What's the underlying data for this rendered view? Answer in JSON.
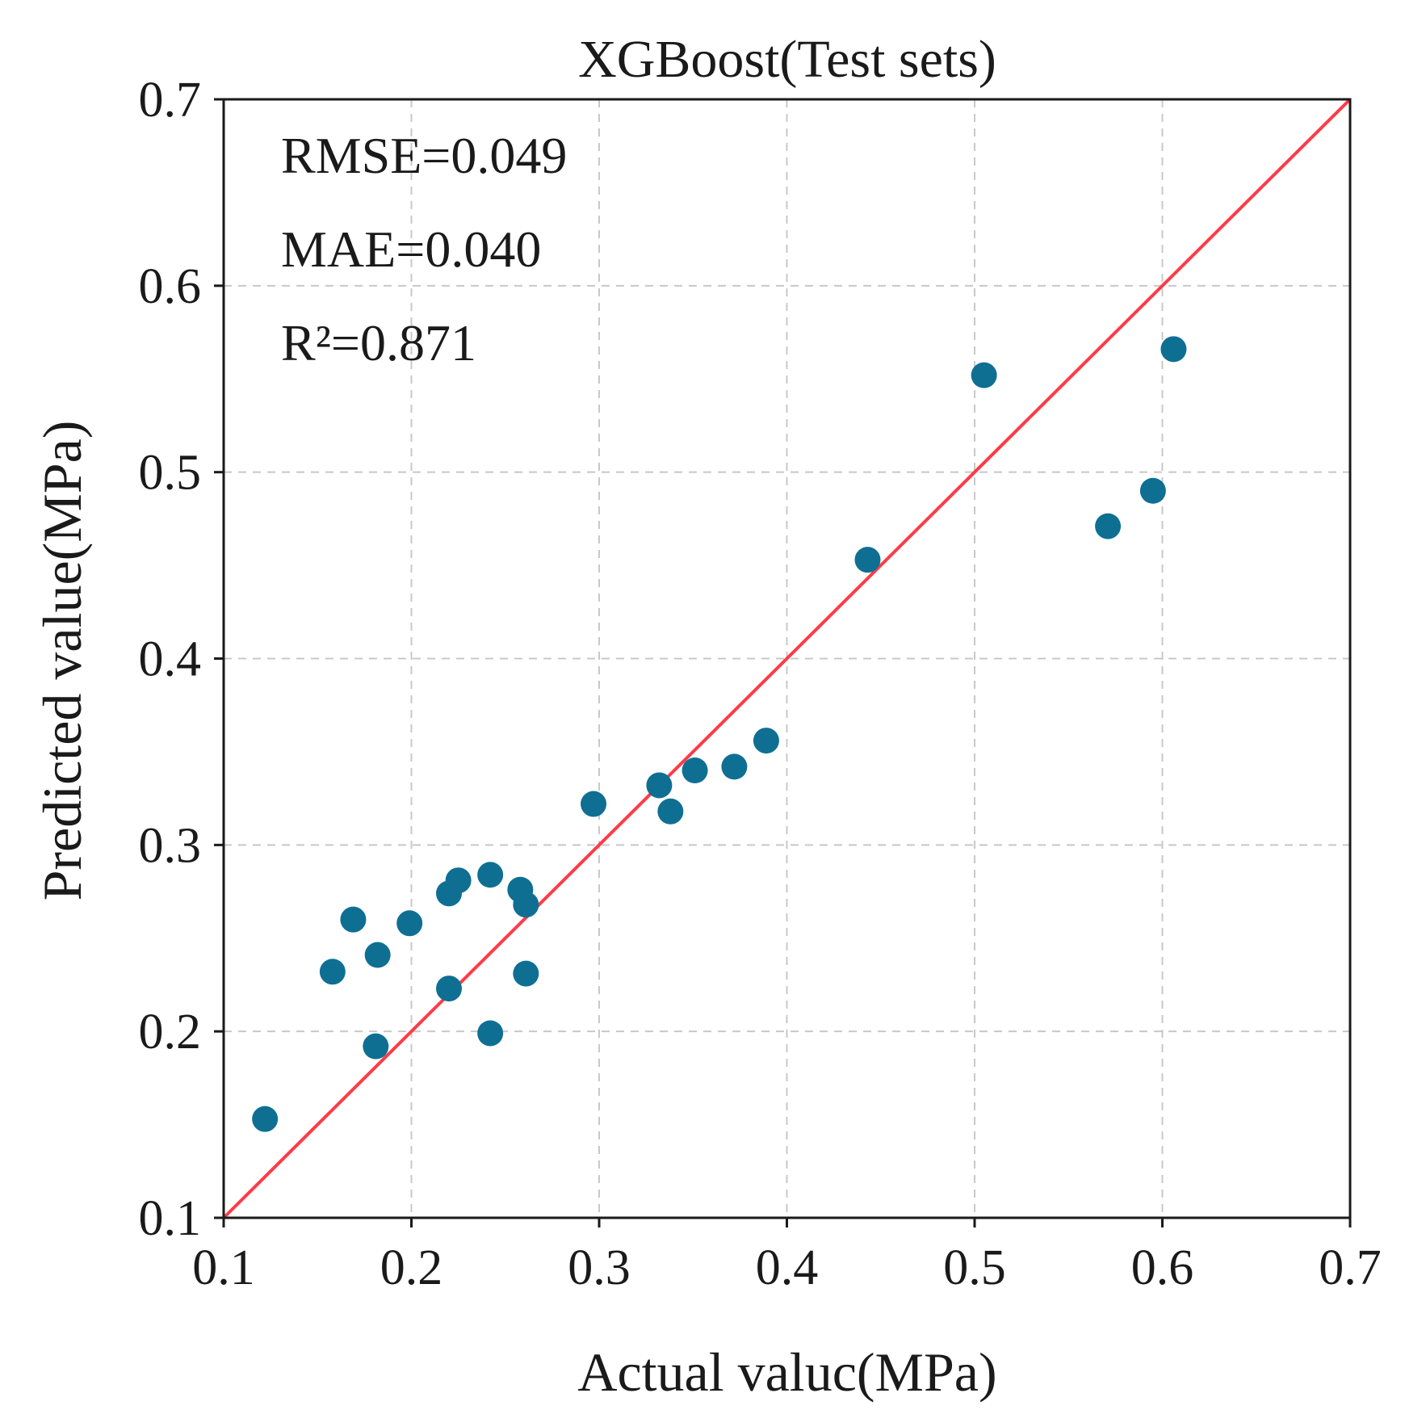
{
  "chart_data": {
    "type": "scatter",
    "title": "XGBoost(Test sets)",
    "xlabel": "Actual valuc(MPa)",
    "ylabel": "Predicted value(MPa)",
    "xlim": [
      0.1,
      0.7
    ],
    "ylim": [
      0.1,
      0.7
    ],
    "x_ticks": [
      0.1,
      0.2,
      0.3,
      0.4,
      0.5,
      0.6,
      0.7
    ],
    "y_ticks": [
      0.1,
      0.2,
      0.3,
      0.4,
      0.5,
      0.6,
      0.7
    ],
    "x_tick_labels": [
      "0.1",
      "0.2",
      "0.3",
      "0.4",
      "0.5",
      "0.6",
      "0.7"
    ],
    "y_tick_labels": [
      "0.1",
      "0.2",
      "0.3",
      "0.4",
      "0.5",
      "0.6",
      "0.7"
    ],
    "grid": true,
    "annotations": [
      "RMSE=0.049",
      "MAE=0.040",
      "R²=0.871"
    ],
    "reference_line": {
      "from": [
        0.1,
        0.1
      ],
      "to": [
        0.7,
        0.7
      ],
      "color": "#ff3b47"
    },
    "point_color": "#0e6f93",
    "points": [
      {
        "x": 0.122,
        "y": 0.153
      },
      {
        "x": 0.158,
        "y": 0.232
      },
      {
        "x": 0.169,
        "y": 0.26
      },
      {
        "x": 0.181,
        "y": 0.192
      },
      {
        "x": 0.182,
        "y": 0.241
      },
      {
        "x": 0.199,
        "y": 0.258
      },
      {
        "x": 0.22,
        "y": 0.223
      },
      {
        "x": 0.22,
        "y": 0.274
      },
      {
        "x": 0.225,
        "y": 0.281
      },
      {
        "x": 0.242,
        "y": 0.199
      },
      {
        "x": 0.242,
        "y": 0.284
      },
      {
        "x": 0.258,
        "y": 0.276
      },
      {
        "x": 0.261,
        "y": 0.268
      },
      {
        "x": 0.261,
        "y": 0.231
      },
      {
        "x": 0.297,
        "y": 0.322
      },
      {
        "x": 0.332,
        "y": 0.332
      },
      {
        "x": 0.338,
        "y": 0.318
      },
      {
        "x": 0.351,
        "y": 0.34
      },
      {
        "x": 0.372,
        "y": 0.342
      },
      {
        "x": 0.389,
        "y": 0.356
      },
      {
        "x": 0.443,
        "y": 0.453
      },
      {
        "x": 0.505,
        "y": 0.552
      },
      {
        "x": 0.571,
        "y": 0.471
      },
      {
        "x": 0.595,
        "y": 0.49
      },
      {
        "x": 0.606,
        "y": 0.566
      }
    ]
  }
}
